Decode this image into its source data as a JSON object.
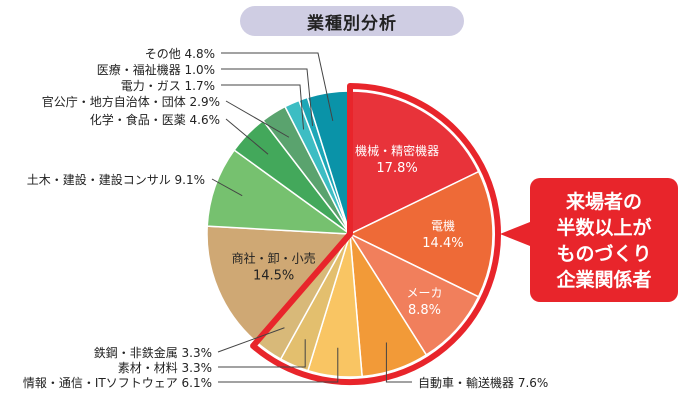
{
  "chart_data": {
    "type": "pie",
    "title": "業種別分析",
    "slices": [
      {
        "label": "機械・精密機器",
        "value": 17.8,
        "value_text": "17.8%",
        "color": "#e8333a",
        "label_color": "#ffffff",
        "inside": true
      },
      {
        "label": "電機",
        "value": 14.4,
        "value_text": "14.4%",
        "color": "#ee6a37",
        "label_color": "#ffffff",
        "inside": true
      },
      {
        "label": "メーカ",
        "value": 8.8,
        "value_text": "8.8%",
        "color": "#f17f5c",
        "label_color": "#ffffff",
        "inside": true
      },
      {
        "label": "自動車・輸送機器",
        "value": 7.6,
        "value_text": "7.6%",
        "color": "#f29a38",
        "label_color": "#222222",
        "inside": false
      },
      {
        "label": "情報・通信・ITソフトウェア",
        "value": 6.1,
        "value_text": "6.1%",
        "color": "#f9c563",
        "label_color": "#222222",
        "inside": false
      },
      {
        "label": "素材・材料",
        "value": 3.3,
        "value_text": "3.3%",
        "color": "#e3bf6e",
        "label_color": "#222222",
        "inside": false
      },
      {
        "label": "鉄鋼・非鉄金属",
        "value": 3.3,
        "value_text": "3.3%",
        "color": "#d8b979",
        "label_color": "#222222",
        "inside": false
      },
      {
        "label": "商社・卸・小売",
        "value": 14.5,
        "value_text": "14.5%",
        "color": "#cfa874",
        "label_color": "#222222",
        "inside": true
      },
      {
        "label": "土木・建設・建設コンサル",
        "value": 9.1,
        "value_text": "9.1%",
        "color": "#76c16f",
        "label_color": "#222222",
        "inside": false
      },
      {
        "label": "化学・食品・医薬",
        "value": 4.6,
        "value_text": "4.6%",
        "color": "#43a85b",
        "label_color": "#222222",
        "inside": false
      },
      {
        "label": "官公庁・地方自治体・団体",
        "value": 2.9,
        "value_text": "2.9%",
        "color": "#5aa36e",
        "label_color": "#222222",
        "inside": false
      },
      {
        "label": "電力・ガス",
        "value": 1.7,
        "value_text": "1.7%",
        "color": "#3dbdc3",
        "label_color": "#222222",
        "inside": false
      },
      {
        "label": "医療・福祉機器",
        "value": 1.0,
        "value_text": "1.0%",
        "color": "#1da7b7",
        "label_color": "#222222",
        "inside": false
      },
      {
        "label": "その他",
        "value": 4.8,
        "value_text": "4.8%",
        "color": "#0a93a8",
        "label_color": "#222222",
        "inside": false
      }
    ],
    "highlight": {
      "outline_color": "#e8252b",
      "callout_lines": [
        "来場者の",
        "半数以上が",
        "ものづくり",
        "企業関係者"
      ]
    }
  }
}
